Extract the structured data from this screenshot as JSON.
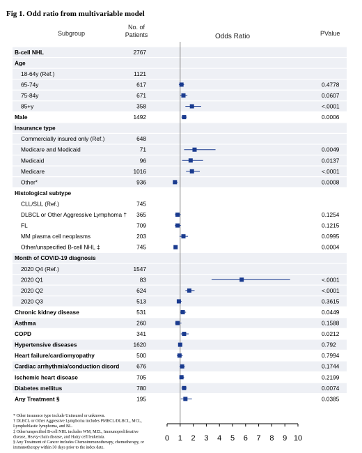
{
  "figure": {
    "title": "Fig 1. Odd ratio from multivariable model",
    "headers": {
      "subgroup": "Subgroup",
      "patients_line1": "No. of",
      "patients_line2": "Patients",
      "odds_ratio": "Odds Ratio",
      "pvalue": "PValue"
    },
    "footnotes": [
      "* Other insurance type include Uninsured or unknown.",
      "† DLBCL or Other Aggressive Lymphoma includes PMBCL/DLBCL, MCL,",
      "   Lymphoblastic lymphoma, and BL.",
      "‡ Other/unspecified B-cell NHL includes WM, MZL, Immunoproliferative",
      "   disease, Heavy-chain disease, and Hairy cell leukemia.",
      "§ Any Treatment of Cancer includes Chemoimmunotherapy, chemotherapy, or",
      "   immunotherapy within 30 days prior to the index date."
    ],
    "colors": {
      "marker": "#1a3b8f",
      "shade": "#eef0f5",
      "refline": "#888888"
    }
  },
  "chart_data": {
    "type": "forest",
    "x_ticks": [
      "0",
      "1",
      "2",
      "3",
      "4",
      "5",
      "6",
      "7",
      "8",
      "9",
      "10"
    ],
    "xlim": [
      0,
      10
    ],
    "reference_line": 1,
    "rows": [
      {
        "label": "B-cell NHL",
        "n": "2767",
        "p": "",
        "or": null,
        "lo": null,
        "hi": null,
        "bold": true,
        "indent": false,
        "shade": true
      },
      {
        "label": "Age",
        "n": "",
        "p": "",
        "or": null,
        "lo": null,
        "hi": null,
        "bold": true,
        "indent": false,
        "shade": true
      },
      {
        "label": "18-64y (Ref.)",
        "n": "1121",
        "p": "",
        "or": null,
        "lo": null,
        "hi": null,
        "bold": false,
        "indent": true,
        "shade": true
      },
      {
        "label": "65-74y",
        "n": "617",
        "p": "0.4778",
        "or": 1.1,
        "lo": 0.9,
        "hi": 1.3,
        "bold": false,
        "indent": true,
        "shade": true
      },
      {
        "label": "75-84y",
        "n": "671",
        "p": "0.0607",
        "or": 1.25,
        "lo": 1.0,
        "hi": 1.55,
        "bold": false,
        "indent": true,
        "shade": true
      },
      {
        "label": "85+y",
        "n": "358",
        "p": "<.0001",
        "or": 1.9,
        "lo": 1.4,
        "hi": 2.6,
        "bold": false,
        "indent": true,
        "shade": true
      },
      {
        "label": "Male",
        "n": "1492",
        "p": "0.0006",
        "or": 1.3,
        "lo": 1.1,
        "hi": 1.5,
        "bold": true,
        "indent": false,
        "shade": false
      },
      {
        "label": "Insurance type",
        "n": "",
        "p": "",
        "or": null,
        "lo": null,
        "hi": null,
        "bold": true,
        "indent": false,
        "shade": true
      },
      {
        "label": "Commercially insured only (Ref.)",
        "n": "648",
        "p": "",
        "or": null,
        "lo": null,
        "hi": null,
        "bold": false,
        "indent": true,
        "shade": true
      },
      {
        "label": "Medicare and Medicaid",
        "n": "71",
        "p": "0.0049",
        "or": 2.1,
        "lo": 1.3,
        "hi": 3.7,
        "bold": false,
        "indent": true,
        "shade": true
      },
      {
        "label": "Medicaid",
        "n": "96",
        "p": "0.0137",
        "or": 1.8,
        "lo": 1.15,
        "hi": 2.75,
        "bold": false,
        "indent": true,
        "shade": true
      },
      {
        "label": "Medicare",
        "n": "1016",
        "p": "<.0001",
        "or": 1.9,
        "lo": 1.45,
        "hi": 2.5,
        "bold": false,
        "indent": true,
        "shade": true
      },
      {
        "label": "Other*",
        "n": "936",
        "p": "0.0008",
        "or": 0.6,
        "lo": 0.45,
        "hi": 0.8,
        "bold": false,
        "indent": true,
        "shade": true
      },
      {
        "label": "Histological subtype",
        "n": "",
        "p": "",
        "or": null,
        "lo": null,
        "hi": null,
        "bold": true,
        "indent": false,
        "shade": false
      },
      {
        "label": "CLL/SLL  (Ref.)",
        "n": "745",
        "p": "",
        "or": null,
        "lo": null,
        "hi": null,
        "bold": false,
        "indent": true,
        "shade": false
      },
      {
        "label": "DLBCL or Other Aggressive Lymphoma †",
        "n": "365",
        "p": "0.1254",
        "or": 0.8,
        "lo": 0.6,
        "hi": 1.05,
        "bold": false,
        "indent": true,
        "shade": false
      },
      {
        "label": "FL",
        "n": "709",
        "p": "0.1215",
        "or": 0.8,
        "lo": 0.6,
        "hi": 1.05,
        "bold": false,
        "indent": true,
        "shade": false
      },
      {
        "label": "MM plasma cell neoplasms",
        "n": "203",
        "p": "0.0995",
        "or": 1.25,
        "lo": 0.95,
        "hi": 1.6,
        "bold": false,
        "indent": true,
        "shade": false
      },
      {
        "label": "Other/unspecified B-cell NHL ‡",
        "n": "745",
        "p": "0.0004",
        "or": 0.65,
        "lo": 0.5,
        "hi": 0.8,
        "bold": false,
        "indent": true,
        "shade": false
      },
      {
        "label": "Month of COVID-19 diagnosis",
        "n": "",
        "p": "",
        "or": null,
        "lo": null,
        "hi": null,
        "bold": true,
        "indent": false,
        "shade": true
      },
      {
        "label": "2020 Q4 (Ref.)",
        "n": "1547",
        "p": "",
        "or": null,
        "lo": null,
        "hi": null,
        "bold": false,
        "indent": true,
        "shade": true
      },
      {
        "label": "2020 Q1",
        "n": "83",
        "p": "<.0001",
        "or": 5.7,
        "lo": 3.4,
        "hi": 9.4,
        "bold": false,
        "indent": true,
        "shade": true
      },
      {
        "label": "2020 Q2",
        "n": "624",
        "p": "<.0001",
        "or": 1.7,
        "lo": 1.4,
        "hi": 2.1,
        "bold": false,
        "indent": true,
        "shade": true
      },
      {
        "label": "2020 Q3",
        "n": "513",
        "p": "0.3615",
        "or": 0.9,
        "lo": 0.75,
        "hi": 1.1,
        "bold": false,
        "indent": true,
        "shade": true
      },
      {
        "label": "Chronic kidney disease",
        "n": "531",
        "p": "0.0449",
        "or": 1.2,
        "lo": 1.0,
        "hi": 1.45,
        "bold": true,
        "indent": false,
        "shade": false
      },
      {
        "label": "Asthma",
        "n": "260",
        "p": "0.1588",
        "or": 0.8,
        "lo": 0.6,
        "hi": 1.1,
        "bold": true,
        "indent": false,
        "shade": true
      },
      {
        "label": "COPD",
        "n": "341",
        "p": "0.0212",
        "or": 1.3,
        "lo": 1.05,
        "hi": 1.65,
        "bold": true,
        "indent": false,
        "shade": false
      },
      {
        "label": "Hypertensive diseases",
        "n": "1620",
        "p": "0.792",
        "or": 1.0,
        "lo": 0.85,
        "hi": 1.15,
        "bold": true,
        "indent": false,
        "shade": true
      },
      {
        "label": "Heart failure/cardiomyopathy",
        "n": "500",
        "p": "0.7994",
        "or": 0.95,
        "lo": 0.75,
        "hi": 1.2,
        "bold": true,
        "indent": false,
        "shade": false
      },
      {
        "label": "Cardiac arrhythmia/conduction disord",
        "n": "676",
        "p": "0.1744",
        "or": 1.15,
        "lo": 0.95,
        "hi": 1.35,
        "bold": true,
        "indent": false,
        "shade": true
      },
      {
        "label": "Ischemic heart disease",
        "n": "705",
        "p": "0.2199",
        "or": 1.1,
        "lo": 0.95,
        "hi": 1.3,
        "bold": true,
        "indent": false,
        "shade": false
      },
      {
        "label": "Diabetes mellitus",
        "n": "780",
        "p": "0.0074",
        "or": 1.3,
        "lo": 1.1,
        "hi": 1.5,
        "bold": true,
        "indent": false,
        "shade": true
      },
      {
        "label": "Any Treatment §",
        "n": "195",
        "p": "0.0385",
        "or": 1.4,
        "lo": 1.05,
        "hi": 1.9,
        "bold": true,
        "indent": false,
        "shade": false
      }
    ]
  }
}
